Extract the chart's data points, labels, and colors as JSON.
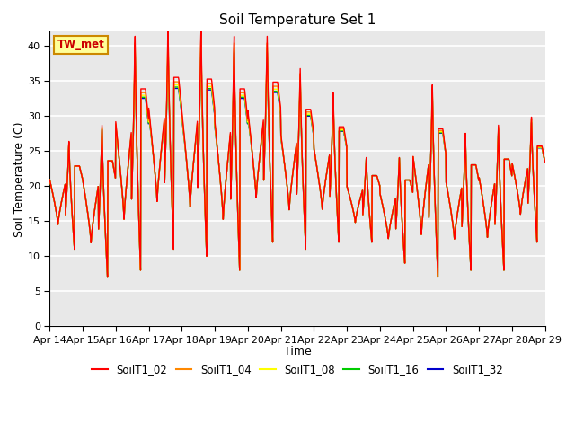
{
  "title": "Soil Temperature Set 1",
  "xlabel": "Time",
  "ylabel": "Soil Temperature (C)",
  "ylim": [
    0,
    42
  ],
  "yticks": [
    0,
    5,
    10,
    15,
    20,
    25,
    30,
    35,
    40
  ],
  "x_labels": [
    "Apr 14",
    "Apr 15",
    "Apr 16",
    "Apr 17",
    "Apr 18",
    "Apr 19",
    "Apr 20",
    "Apr 21",
    "Apr 22",
    "Apr 23",
    "Apr 24",
    "Apr 25",
    "Apr 26",
    "Apr 27",
    "Apr 28",
    "Apr 29"
  ],
  "series_names": [
    "SoilT1_02",
    "SoilT1_04",
    "SoilT1_08",
    "SoilT1_16",
    "SoilT1_32"
  ],
  "series_colors": [
    "#ff0000",
    "#ff8800",
    "#ffff00",
    "#00cc00",
    "#0000cc"
  ],
  "annotation_text": "TW_met",
  "annotation_color": "#cc0000",
  "annotation_bg": "#ffff99",
  "annotation_border": "#cc8800",
  "background_color": "#e8e8e8",
  "grid_color": "#ffffff",
  "n_days": 15,
  "day_peaks": [
    26,
    28,
    39,
    40,
    40,
    39,
    39,
    35,
    32,
    24,
    24,
    33,
    27,
    28,
    29
  ],
  "day_troughs": [
    11,
    7,
    8,
    11,
    10,
    8,
    12,
    11,
    12,
    12,
    9,
    7,
    8,
    8,
    12
  ],
  "peak_extra_02": 2.5,
  "peak_extra_04": 1.5,
  "peak_extra_08": 0.8,
  "peak_extra_16": 0.3,
  "peak_extra_32": 0.0,
  "figsize": [
    6.4,
    4.8
  ],
  "dpi": 100
}
